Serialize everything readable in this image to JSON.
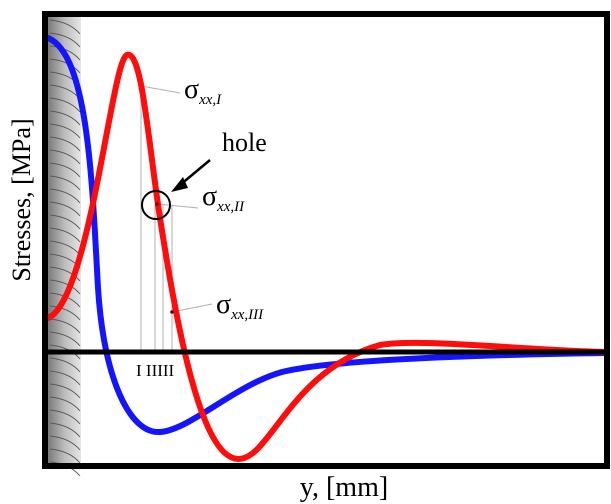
{
  "axis": {
    "ylabel": "Stresses, [MPa]",
    "xlabel": "y, [mm]"
  },
  "annotations": {
    "hole_label": "hole",
    "sigma_symbol": "σ",
    "sigma_I_sub": "xx,I",
    "sigma_II_sub": "xx,II",
    "sigma_III_sub": "xx,III",
    "marker_labels": "I IIIII"
  },
  "colors": {
    "blue_curve": "#1414ff",
    "red_curve": "#ff0d0d",
    "frame": "#000000",
    "guide_lines": "#b0b0b0",
    "hatch_fill": "#9a9a9a"
  }
}
